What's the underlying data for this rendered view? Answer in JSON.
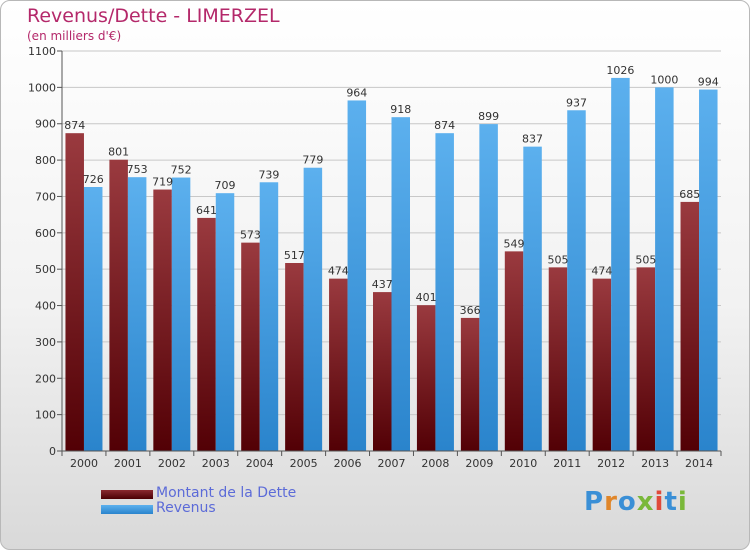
{
  "title": "Revenus/Dette - LIMERZEL",
  "subtitle": "(en milliers d'€)",
  "colors": {
    "title": "#b4286a",
    "dette": "#6e1518",
    "revenus": "#3a96dc",
    "legend_text": "#5c6bd8"
  },
  "chart_data": {
    "type": "bar",
    "categories": [
      "2000",
      "2001",
      "2002",
      "2003",
      "2004",
      "2005",
      "2006",
      "2007",
      "2008",
      "2009",
      "2010",
      "2011",
      "2012",
      "2013",
      "2014"
    ],
    "series": [
      {
        "name": "Montant de la Dette",
        "values": [
          874,
          801,
          719,
          641,
          573,
          517,
          474,
          437,
          401,
          366,
          549,
          505,
          474,
          505,
          685
        ]
      },
      {
        "name": "Revenus",
        "values": [
          726,
          753,
          752,
          709,
          739,
          779,
          964,
          918,
          874,
          899,
          837,
          937,
          1026,
          1000,
          994
        ]
      }
    ],
    "ylim": [
      0,
      1100
    ],
    "yticks": [
      0,
      100,
      200,
      300,
      400,
      500,
      600,
      700,
      800,
      900,
      1000,
      1100
    ],
    "grid": true,
    "legend": "bottom-left"
  },
  "legend": {
    "dette": "Montant de la Dette",
    "revenus": "Revenus"
  },
  "logo": {
    "text": "Proxiti"
  }
}
